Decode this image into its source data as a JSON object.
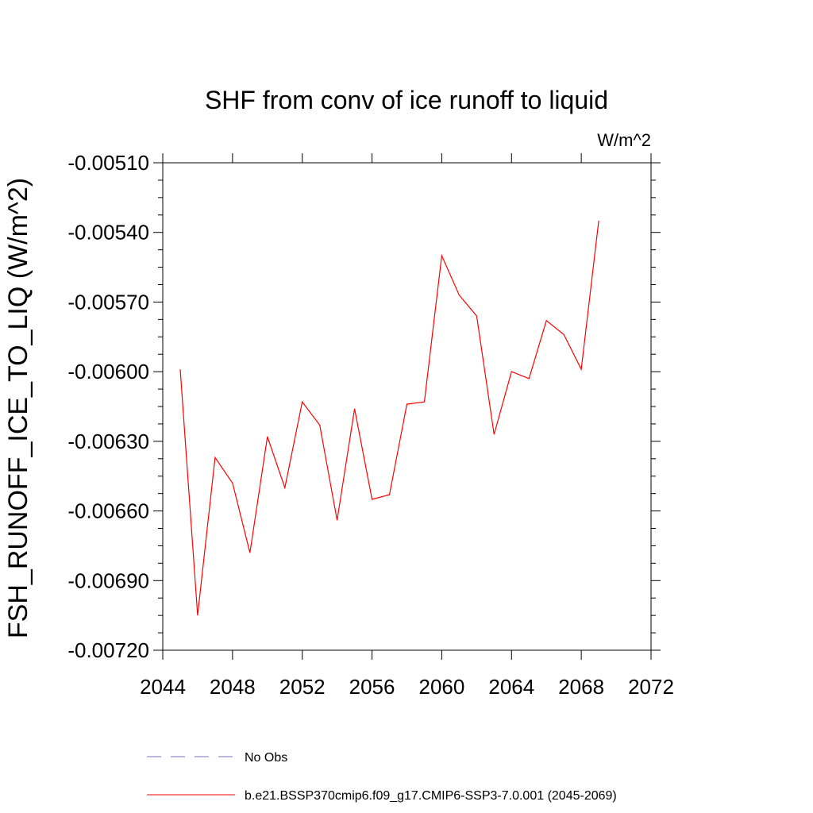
{
  "chart_data": {
    "type": "line",
    "title": "SHF from conv of ice runoff to liquid",
    "units": "W/m^2",
    "ylabel": "FSH_RUNOFF_ICE_TO_LIQ  (W/m^2)",
    "xlabel": "",
    "xlim": [
      2044,
      2072
    ],
    "ylim": [
      -0.0072,
      -0.0051
    ],
    "x_ticks": [
      "2044",
      "2048",
      "2052",
      "2056",
      "2060",
      "2064",
      "2068",
      "2072"
    ],
    "y_ticks": [
      "-0.00510",
      "-0.00540",
      "-0.00570",
      "-0.00600",
      "-0.00630",
      "-0.00660",
      "-0.00690",
      "-0.00720"
    ],
    "grid": false,
    "series": [
      {
        "name": "b.e21.BSSP370cmip6.f09_g17.CMIP6-SSP3-7.0.001 (2045-2069)",
        "color": "#ff0000",
        "x": [
          2045,
          2046,
          2047,
          2048,
          2049,
          2050,
          2051,
          2052,
          2053,
          2054,
          2055,
          2056,
          2057,
          2058,
          2059,
          2060,
          2061,
          2062,
          2063,
          2064,
          2065,
          2066,
          2067,
          2068,
          2069
        ],
        "y": [
          -0.00599,
          -0.00705,
          -0.00637,
          -0.00648,
          -0.00678,
          -0.00628,
          -0.0065,
          -0.00613,
          -0.00623,
          -0.00664,
          -0.00616,
          -0.00655,
          -0.00653,
          -0.00614,
          -0.00613,
          -0.0055,
          -0.00567,
          -0.00576,
          -0.00627,
          -0.006,
          -0.00603,
          -0.00578,
          -0.00584,
          -0.00599,
          -0.00535
        ]
      }
    ],
    "legend": [
      {
        "label": "No Obs",
        "color": "#7b6fc6",
        "style": "dashed"
      },
      {
        "label": "b.e21.BSSP370cmip6.f09_g17.CMIP6-SSP3-7.0.001 (2045-2069)",
        "color": "#ff0000",
        "style": "solid"
      }
    ]
  }
}
